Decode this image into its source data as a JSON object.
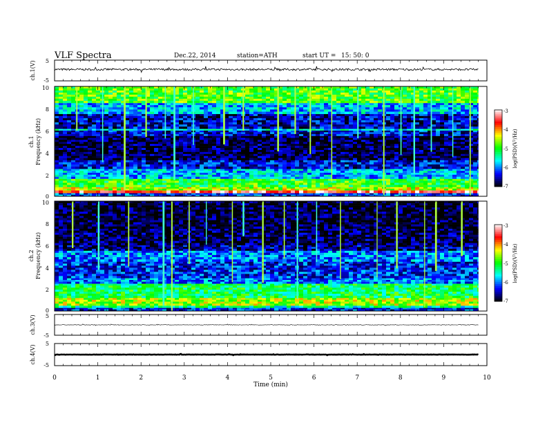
{
  "header": {
    "title": "VLF  Spectra",
    "date": "Dec.22, 2014",
    "station": "station=ATH",
    "start_label": "start  UT  =",
    "start_time": "15: 50: 0"
  },
  "xaxis": {
    "label": "Time  (min)",
    "ticks": [
      "0",
      "1",
      "2",
      "3",
      "4",
      "5",
      "6",
      "7",
      "8",
      "9",
      "10"
    ],
    "range": [
      0,
      10
    ],
    "data_end": 9.8
  },
  "panels": {
    "ch1": {
      "label": "ch.1(V)",
      "ticks": [
        "5",
        "-5"
      ]
    },
    "spec1": {
      "label_ch": "ch.1",
      "label_freq": "Frequency  (kHz)",
      "ticks": [
        "10",
        "8",
        "6",
        "4",
        "2",
        "0"
      ]
    },
    "spec2": {
      "label_ch": "ch.2",
      "label_freq": "Frequency  (kHz)",
      "ticks": [
        "10",
        "8",
        "6",
        "4",
        "2",
        "0"
      ]
    },
    "ch3": {
      "label": "ch.3(V)",
      "ticks": [
        "5",
        "-5"
      ]
    },
    "ch4": {
      "label": "ch.4(V)",
      "ticks": [
        "5",
        "-5"
      ]
    }
  },
  "colorbar": {
    "label": "log(PSD)(V²/Hz)",
    "ticks": [
      "-3",
      "-4",
      "-5",
      "-6",
      "-7"
    ],
    "range": [
      -7,
      -3
    ],
    "colors": [
      "#000000",
      "#000080",
      "#0000ff",
      "#0080ff",
      "#00ffff",
      "#00ff80",
      "#00ff00",
      "#80ff00",
      "#ffff00",
      "#ff8000",
      "#ff0000",
      "#ff8080",
      "#ffffff"
    ]
  },
  "chart_data": [
    {
      "type": "line",
      "name": "ch1-waveform",
      "ylabel": "ch.1(V)",
      "xlim": [
        0,
        10
      ],
      "ylim": [
        -5,
        5
      ],
      "x_range": [
        0,
        9.8
      ],
      "mean_value": 0.5,
      "amplitude": 0.6
    },
    {
      "type": "heatmap",
      "name": "ch1-spectrogram",
      "ylabel": "Frequency  (kHz)",
      "xlim": [
        0,
        10
      ],
      "ylim": [
        0,
        10
      ],
      "zlim": [
        -7,
        -3
      ],
      "bands": [
        {
          "f": [
            0.0,
            0.3
          ],
          "value": -6.2
        },
        {
          "f": [
            0.3,
            0.55
          ],
          "value": -3.5
        },
        {
          "f": [
            0.55,
            0.85
          ],
          "value": -4.5
        },
        {
          "f": [
            0.85,
            1.6
          ],
          "value": -5.0
        },
        {
          "f": [
            1.6,
            2.5
          ],
          "value": -5.8
        },
        {
          "f": [
            2.5,
            3.3
          ],
          "value": -6.4
        },
        {
          "f": [
            3.3,
            5.5
          ],
          "value": -6.8
        },
        {
          "f": [
            5.5,
            6.0
          ],
          "value": -6.4
        },
        {
          "f": [
            6.0,
            6.15
          ],
          "value": -5.6
        },
        {
          "f": [
            6.15,
            7.5
          ],
          "value": -6.5
        },
        {
          "f": [
            7.5,
            8.5
          ],
          "value": -5.8
        },
        {
          "f": [
            8.5,
            10.0
          ],
          "value": -4.9
        }
      ],
      "vertical_events_min": [
        0.5,
        1.1,
        1.6,
        2.1,
        2.55,
        2.75,
        3.2,
        3.9,
        4.35,
        5.15,
        5.55,
        5.9,
        6.4,
        7.0,
        7.6,
        8.0,
        8.3,
        8.7,
        9.2,
        9.6
      ]
    },
    {
      "type": "heatmap",
      "name": "ch2-spectrogram",
      "ylabel": "Frequency  (kHz)",
      "xlim": [
        0,
        10
      ],
      "ylim": [
        0,
        10
      ],
      "zlim": [
        -7,
        -3
      ],
      "bands": [
        {
          "f": [
            0.0,
            0.3
          ],
          "value": -6.3
        },
        {
          "f": [
            0.3,
            0.5
          ],
          "value": -5.4
        },
        {
          "f": [
            0.5,
            1.2
          ],
          "value": -4.6
        },
        {
          "f": [
            1.2,
            2.5
          ],
          "value": -5.2
        },
        {
          "f": [
            2.5,
            3.0
          ],
          "value": -6.0
        },
        {
          "f": [
            3.0,
            4.5
          ],
          "value": -6.3
        },
        {
          "f": [
            4.5,
            5.5
          ],
          "value": -6.0
        },
        {
          "f": [
            5.5,
            6.0
          ],
          "value": -6.6
        },
        {
          "f": [
            6.0,
            7.5
          ],
          "value": -6.8
        },
        {
          "f": [
            7.5,
            10.0
          ],
          "value": -6.9
        }
      ],
      "vertical_events_min": [
        0.4,
        1.0,
        1.7,
        2.5,
        2.7,
        3.1,
        3.5,
        4.1,
        4.35,
        4.8,
        5.3,
        5.6,
        6.05,
        6.6,
        7.45,
        7.9,
        8.55,
        8.8,
        9.4
      ]
    },
    {
      "type": "line",
      "name": "ch3-waveform",
      "ylabel": "ch.3(V)",
      "xlim": [
        0,
        10
      ],
      "ylim": [
        -5,
        5
      ],
      "x_range": [
        0,
        9.8
      ],
      "mean_value": 0.0,
      "amplitude": 0.25
    },
    {
      "type": "line",
      "name": "ch4-waveform",
      "ylabel": "ch.4(V)",
      "xlim": [
        0,
        10
      ],
      "ylim": [
        -5,
        5
      ],
      "x_range": [
        0,
        9.8
      ],
      "mean_value": 0.0,
      "amplitude": 0.15
    }
  ]
}
